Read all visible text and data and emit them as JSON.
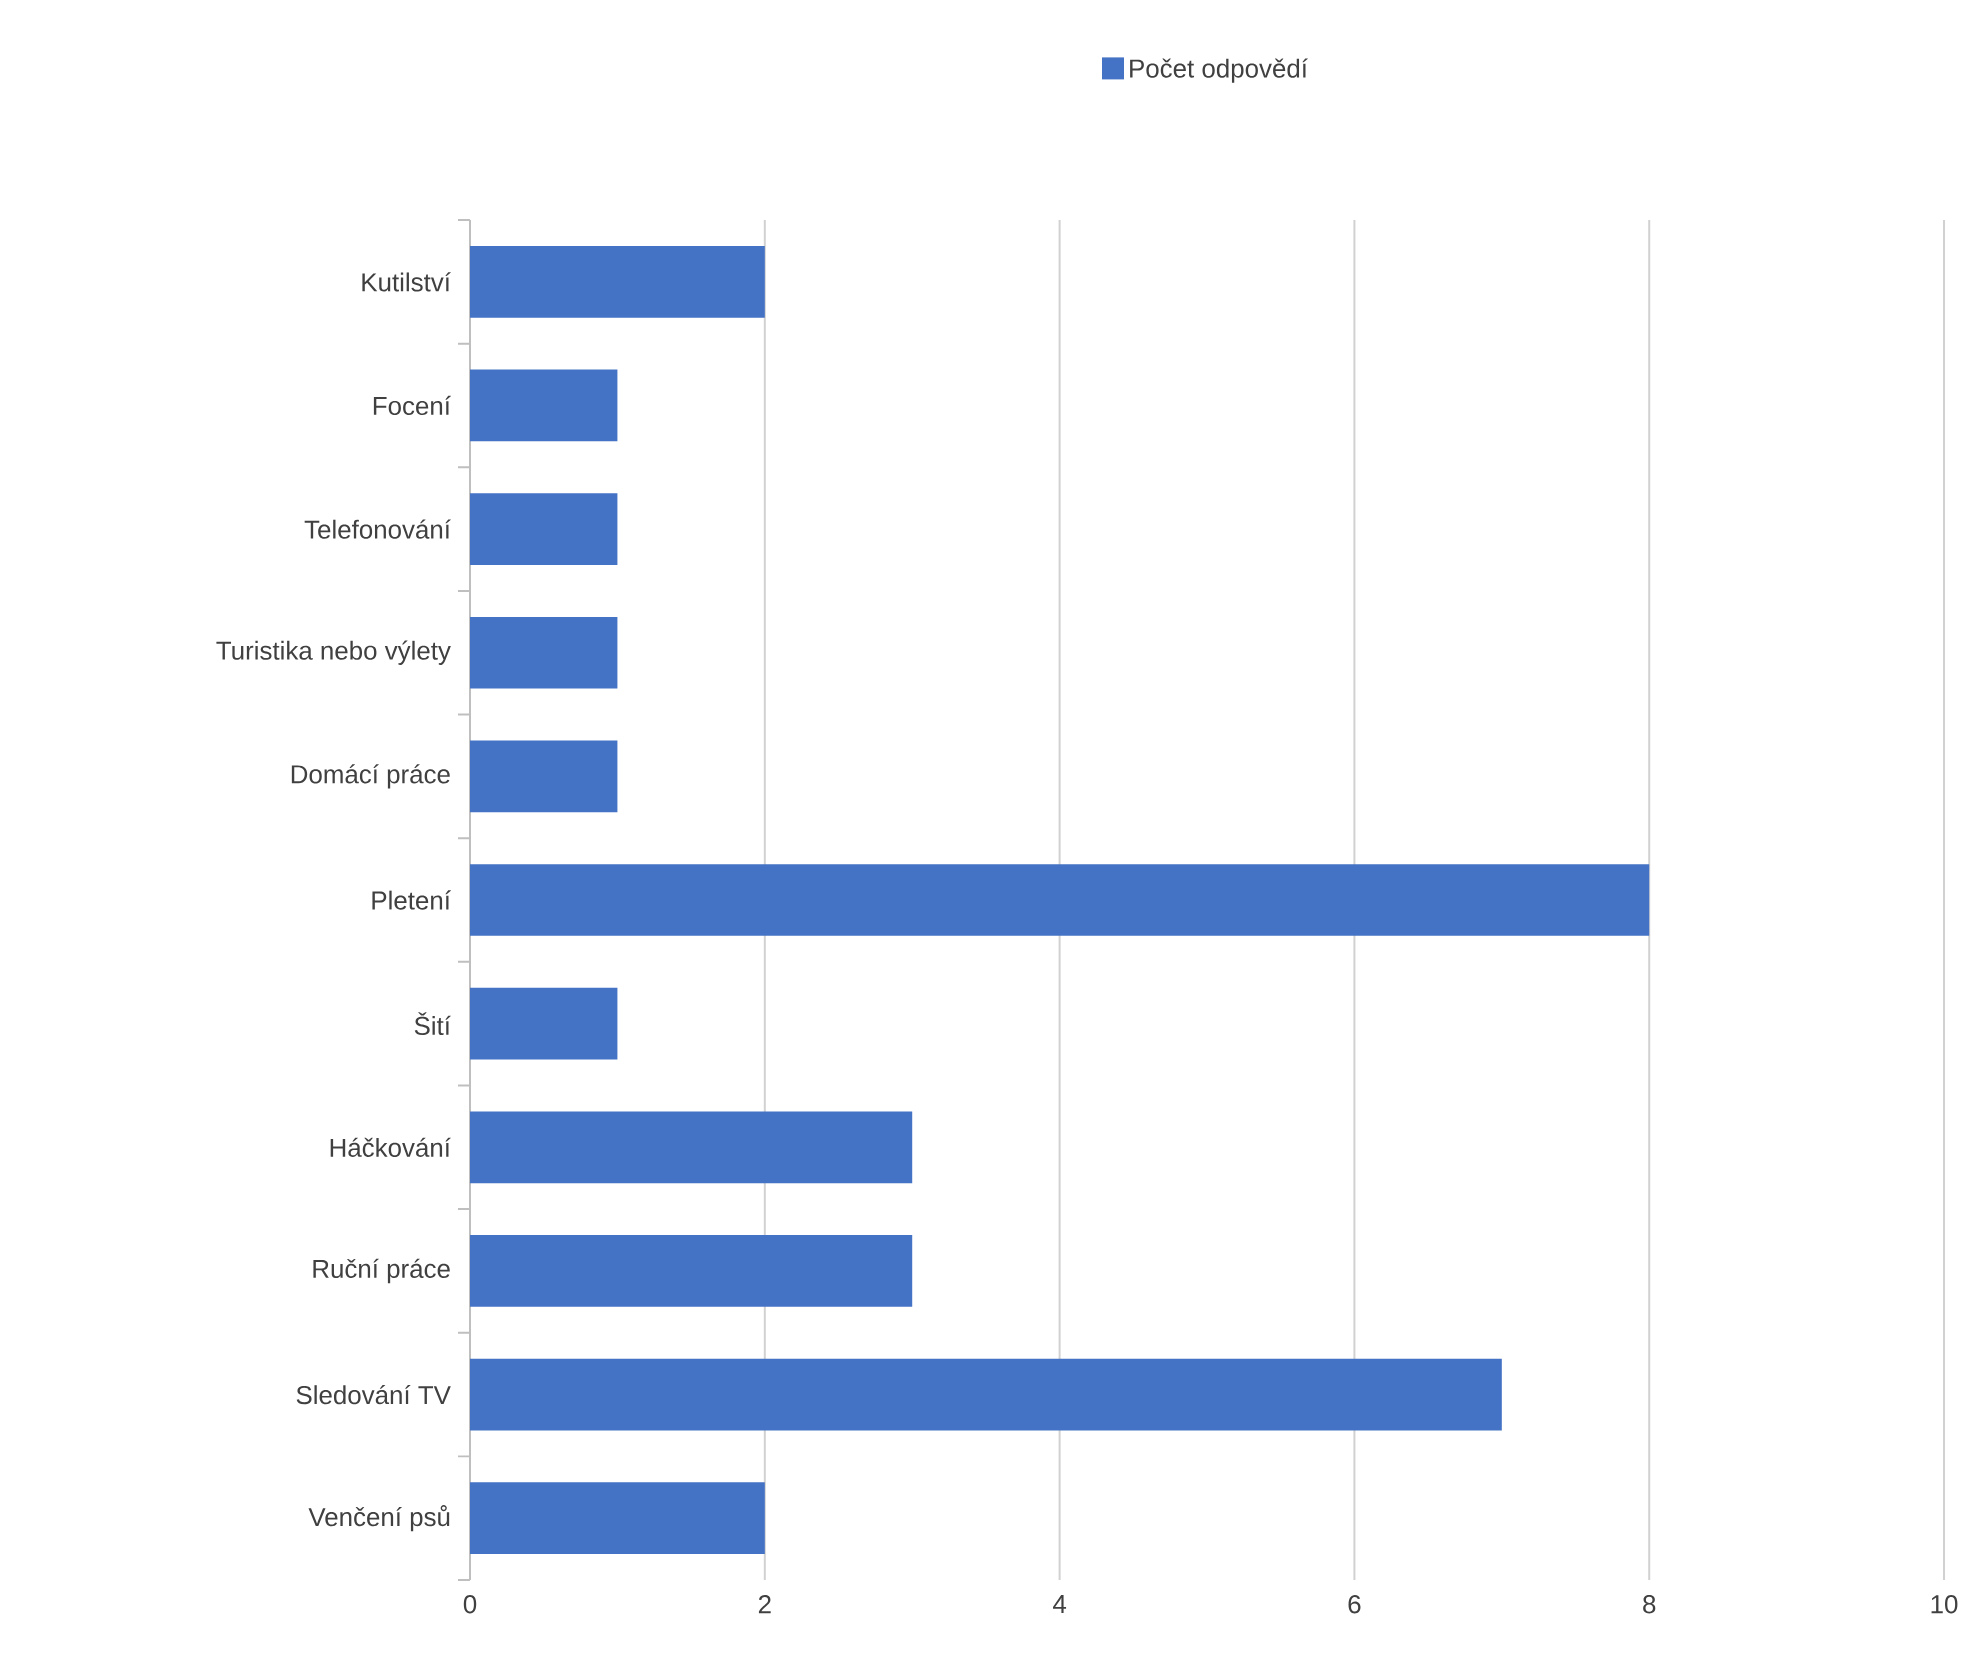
{
  "chart_data": {
    "type": "bar",
    "orientation": "horizontal",
    "categories": [
      "Kutilství",
      "Focení",
      "Telefonování",
      "Turistika nebo výlety",
      "Domácí práce",
      "Pletení",
      "Šití",
      "Háčkování",
      "Ruční práce",
      "Sledování TV",
      "Venčení psů"
    ],
    "series": [
      {
        "name": "Počet odpovědí",
        "color": "#4472c4",
        "values": [
          2,
          1,
          1,
          1,
          1,
          8,
          1,
          3,
          3,
          7,
          2
        ]
      }
    ],
    "xlim": [
      0,
      10
    ],
    "xticks": [
      0,
      2,
      4,
      6,
      8,
      10
    ],
    "grid": "x",
    "legend": "top"
  }
}
